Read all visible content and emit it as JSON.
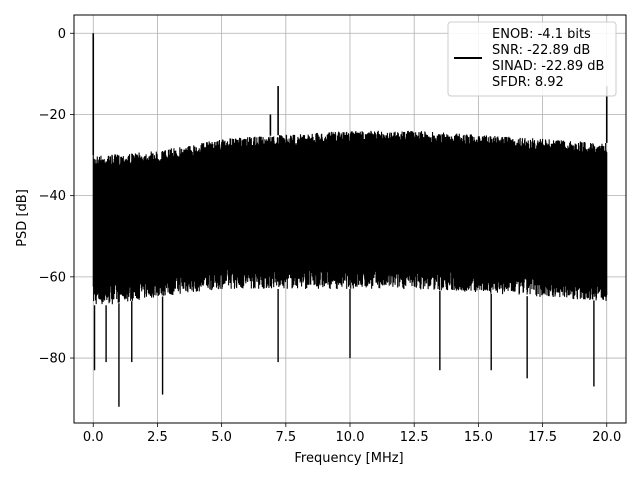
{
  "chart_data": {
    "type": "line",
    "title": "",
    "xlabel": "Frequency [MHz]",
    "ylabel": "PSD [dB]",
    "xlim": [
      -0.75,
      20.75
    ],
    "ylim": [
      -96,
      4.5
    ],
    "xticks": [
      0.0,
      2.5,
      5.0,
      7.5,
      10.0,
      12.5,
      15.0,
      17.5,
      20.0
    ],
    "xtick_labels": [
      "0.0",
      "2.5",
      "5.0",
      "7.5",
      "10.0",
      "12.5",
      "15.0",
      "17.5",
      "20.0"
    ],
    "yticks": [
      0,
      -20,
      -40,
      -60,
      -80
    ],
    "ytick_labels": [
      "0",
      "−20",
      "−40",
      "−60",
      "−80"
    ],
    "grid": true,
    "legend_position": "top-right",
    "legend_lines": [
      "ENOB: -4.1 bits",
      "SNR: -22.89 dB",
      "SINAD: -22.89 dB",
      "SFDR: 8.92"
    ],
    "series": [
      {
        "color": "#000000",
        "noise_floor": {
          "x": [
            0.0,
            0.5,
            2.5,
            5.0,
            7.5,
            10.0,
            12.5,
            15.0,
            17.5,
            20.0
          ],
          "upper": [
            -30,
            -30,
            -29,
            -26,
            -25,
            -24,
            -24,
            -25,
            -26,
            -27
          ],
          "lower": [
            -67,
            -67,
            -65,
            -63,
            -63,
            -63,
            -63,
            -64,
            -65,
            -66
          ]
        },
        "spikes": [
          {
            "x": 0.0,
            "y": 0
          },
          {
            "x": 6.9,
            "y": -20
          },
          {
            "x": 7.2,
            "y": -13
          },
          {
            "x": 20.0,
            "y": -13
          }
        ],
        "dips": [
          {
            "x": 0.05,
            "y": -83
          },
          {
            "x": 0.5,
            "y": -81
          },
          {
            "x": 1.0,
            "y": -92
          },
          {
            "x": 1.5,
            "y": -81
          },
          {
            "x": 2.7,
            "y": -89
          },
          {
            "x": 7.2,
            "y": -81
          },
          {
            "x": 10.0,
            "y": -80
          },
          {
            "x": 13.5,
            "y": -83
          },
          {
            "x": 15.5,
            "y": -83
          },
          {
            "x": 16.9,
            "y": -85
          },
          {
            "x": 19.5,
            "y": -87
          }
        ]
      }
    ]
  }
}
